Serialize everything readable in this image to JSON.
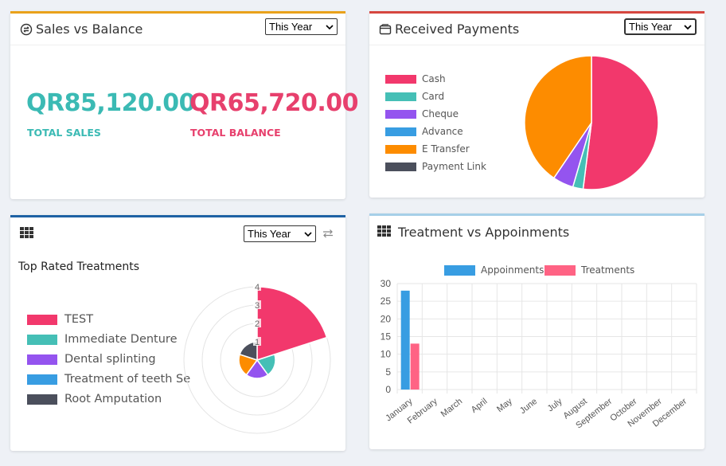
{
  "colors": {
    "pink": "#f2386c",
    "teal": "#45bfb6",
    "purple": "#9454ef",
    "blue": "#389de2",
    "orange": "#fd8c00",
    "dark": "#4b4f5c",
    "sales": "#3bbab4",
    "balance": "#e7406d"
  },
  "sales_card": {
    "title": "Sales vs Balance",
    "select": "This Year",
    "total_sales_value": "QR85,120.00",
    "total_sales_label": "TOTAL SALES",
    "total_balance_value": "QR65,720.00",
    "total_balance_label": "TOTAL BALANCE"
  },
  "payments_card": {
    "title": "Received Payments",
    "select": "This Year"
  },
  "treatments_card": {
    "select": "This Year",
    "subtitle": "Top Rated Treatments"
  },
  "appointments_card": {
    "title": "Treatment vs Appoinments"
  },
  "chart_data": [
    {
      "type": "pie",
      "categories": [
        "Cash",
        "Card",
        "Cheque",
        "Advance",
        "E Transfer",
        "Payment Link"
      ],
      "values": [
        52,
        2.5,
        5,
        0,
        40.5,
        0
      ],
      "legend": "left"
    },
    {
      "type": "polarArea",
      "categories": [
        "TEST",
        "Immediate Denture",
        "Dental splinting",
        "Treatment of teeth Se",
        "Root Amputation"
      ],
      "values": [
        4,
        1,
        1,
        1,
        1
      ],
      "rlim": [
        0,
        4
      ],
      "rticks": [
        "1",
        "2",
        "3",
        "4"
      ],
      "legend": "left"
    },
    {
      "type": "bar",
      "categories": [
        "January",
        "February",
        "March",
        "April",
        "May",
        "June",
        "July",
        "August",
        "September",
        "October",
        "November",
        "December"
      ],
      "series": [
        {
          "name": "Appoinments",
          "values": [
            28,
            0,
            0,
            0,
            0,
            0,
            0,
            0,
            0,
            0,
            0,
            0
          ]
        },
        {
          "name": "Treatments",
          "values": [
            13,
            0,
            0,
            0,
            0,
            0,
            0,
            0,
            0,
            0,
            0,
            0
          ]
        }
      ],
      "ylim": [
        0,
        30
      ],
      "yticks": [
        0,
        5,
        10,
        15,
        20,
        25,
        30
      ],
      "grid": true,
      "legend": "top"
    }
  ]
}
